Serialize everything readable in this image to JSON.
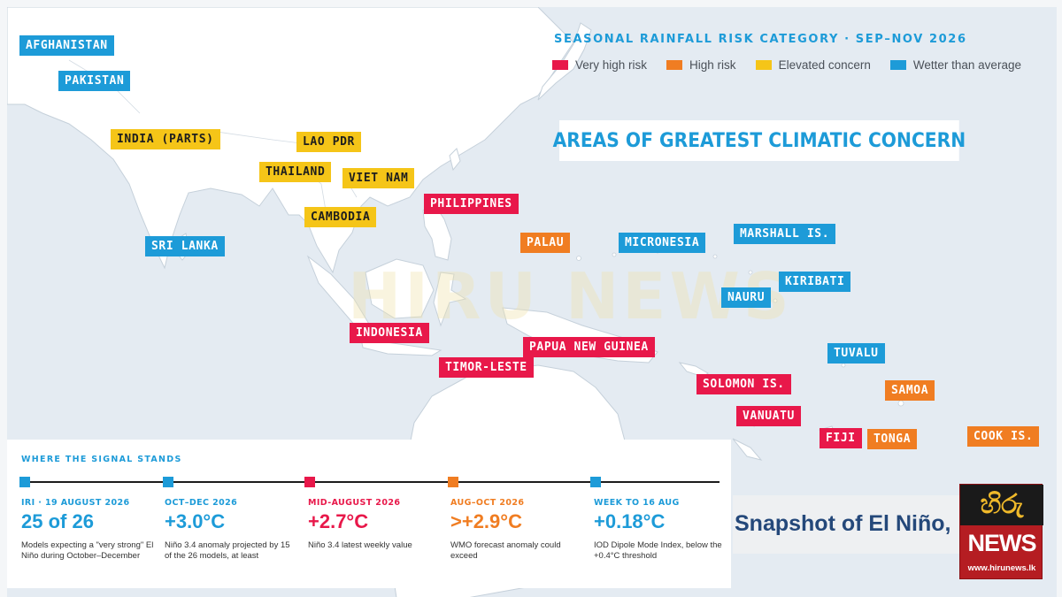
{
  "legend": {
    "title": "SEASONAL RAINFALL RISK CATEGORY · SEP–NOV 2026",
    "items": [
      {
        "label": "Very high risk",
        "color": "#e8184a"
      },
      {
        "label": "High risk",
        "color": "#f07d22"
      },
      {
        "label": "Elevated concern",
        "color": "#f5c518"
      },
      {
        "label": "Wetter than average",
        "color": "#1d9bd8"
      }
    ]
  },
  "headline": "AREAS OF GREATEST CLIMATIC CONCERN",
  "watermark": "HIRU NEWS",
  "regions": [
    {
      "id": "afghanistan",
      "name": "AFGHANISTAN",
      "category": "Wetter than average",
      "color": "#1d9bd8"
    },
    {
      "id": "pakistan",
      "name": "PAKISTAN",
      "category": "Wetter than average",
      "color": "#1d9bd8"
    },
    {
      "id": "india",
      "name": "INDIA (PARTS)",
      "category": "Elevated concern",
      "color": "#f5c518"
    },
    {
      "id": "lao",
      "name": "LAO PDR",
      "category": "Elevated concern",
      "color": "#f5c518"
    },
    {
      "id": "thailand",
      "name": "THAILAND",
      "category": "Elevated concern",
      "color": "#f5c518"
    },
    {
      "id": "vietnam",
      "name": "VIET NAM",
      "category": "Elevated concern",
      "color": "#f5c518"
    },
    {
      "id": "cambodia",
      "name": "CAMBODIA",
      "category": "Elevated concern",
      "color": "#f5c518"
    },
    {
      "id": "philippines",
      "name": "PHILIPPINES",
      "category": "Very high risk",
      "color": "#e8184a"
    },
    {
      "id": "srilanka",
      "name": "SRI LANKA",
      "category": "Wetter than average",
      "color": "#1d9bd8"
    },
    {
      "id": "palau",
      "name": "PALAU",
      "category": "High risk",
      "color": "#f07d22"
    },
    {
      "id": "micronesia",
      "name": "MICRONESIA",
      "category": "Wetter than average",
      "color": "#1d9bd8"
    },
    {
      "id": "marshall",
      "name": "MARSHALL IS.",
      "category": "Wetter than average",
      "color": "#1d9bd8"
    },
    {
      "id": "kiribati",
      "name": "KIRIBATI",
      "category": "Wetter than average",
      "color": "#1d9bd8"
    },
    {
      "id": "nauru",
      "name": "NAURU",
      "category": "Wetter than average",
      "color": "#1d9bd8"
    },
    {
      "id": "indonesia",
      "name": "INDONESIA",
      "category": "Very high risk",
      "color": "#e8184a"
    },
    {
      "id": "png",
      "name": "PAPUA NEW GUINEA",
      "category": "Very high risk",
      "color": "#e8184a"
    },
    {
      "id": "timor",
      "name": "TIMOR-LESTE",
      "category": "Very high risk",
      "color": "#e8184a"
    },
    {
      "id": "tuvalu",
      "name": "TUVALU",
      "category": "Wetter than average",
      "color": "#1d9bd8"
    },
    {
      "id": "solomon",
      "name": "SOLOMON IS.",
      "category": "Very high risk",
      "color": "#e8184a"
    },
    {
      "id": "samoa",
      "name": "SAMOA",
      "category": "High risk",
      "color": "#f07d22"
    },
    {
      "id": "vanuatu",
      "name": "VANUATU",
      "category": "Very high risk",
      "color": "#e8184a"
    },
    {
      "id": "fiji",
      "name": "FIJI",
      "category": "Very high risk",
      "color": "#e8184a"
    },
    {
      "id": "tonga",
      "name": "TONGA",
      "category": "High risk",
      "color": "#f07d22"
    },
    {
      "id": "cook",
      "name": "COOK IS.",
      "category": "High risk",
      "color": "#f07d22"
    }
  ],
  "signal": {
    "title": "WHERE THE SIGNAL STANDS",
    "stats": [
      {
        "period": "IRI · 19 AUGUST 2026",
        "value": "25 of 26",
        "note": "Models expecting a \"very strong\" El Niño during October–December",
        "color": "#1d9bd8"
      },
      {
        "period": "OCT–DEC 2026",
        "value": "+3.0°C",
        "note": "Niño 3.4 anomaly projected by 15 of the 26 models, at least",
        "color": "#1d9bd8"
      },
      {
        "period": "MID-AUGUST 2026",
        "value": "+2.7°C",
        "note": "Niño 3.4 latest weekly value",
        "color": "#e8184a"
      },
      {
        "period": "AUG–OCT 2026",
        "value": ">+2.9°C",
        "note": "WMO forecast anomaly could exceed",
        "color": "#f07d22"
      },
      {
        "period": "WEEK TO 16 AUG",
        "value": "+0.18°C",
        "note": "IOD Dipole Mode Index, below the +0.4°C threshold",
        "color": "#1d9bd8"
      }
    ]
  },
  "snapshot": "Snapshot of El Niño,",
  "logo": {
    "glyph": "හිරු",
    "name": "NEWS",
    "url": "www.hirunews.lk"
  }
}
